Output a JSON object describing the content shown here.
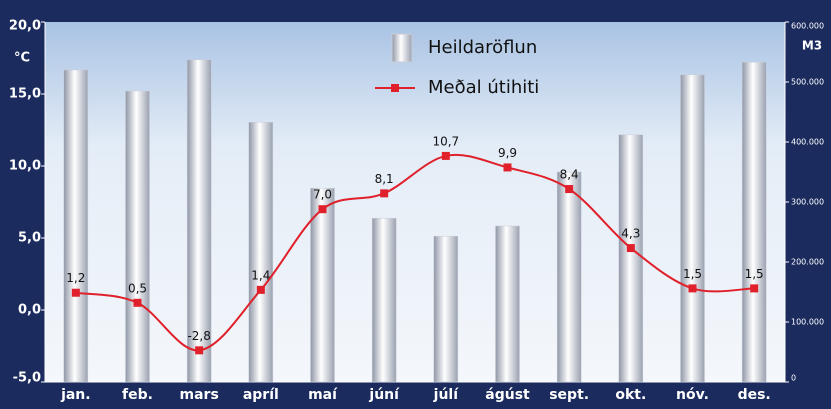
{
  "chart_data": {
    "type": "bar-line",
    "ylabel": "°C",
    "y2label": "M3",
    "categories": [
      "jan.",
      "feb.",
      "mars",
      "apríl",
      "maí",
      "júní",
      "júlí",
      "ágúst",
      "sept.",
      "okt.",
      "nóv.",
      "des."
    ],
    "series": [
      {
        "name": "Heildaröflun",
        "type": "bar",
        "axis": "y2",
        "color": "#c9cdd8",
        "values": [
          520000,
          485000,
          537000,
          433000,
          323000,
          273000,
          243000,
          260000,
          350000,
          412000,
          512000,
          533000
        ]
      },
      {
        "name": "Meðal útihiti",
        "type": "line",
        "axis": "y",
        "color": "#e0202a",
        "values": [
          1.2,
          0.5,
          -2.8,
          1.4,
          7.0,
          8.1,
          10.7,
          9.9,
          8.4,
          4.3,
          1.5,
          1.5
        ],
        "value_labels": [
          "1,2",
          "0,5",
          "-2,8",
          "1,4",
          "7,0",
          "8,1",
          "10,7",
          "9,9",
          "8,4",
          "4,3",
          "1,5",
          "1,5"
        ]
      }
    ],
    "ylim": [
      -5,
      20
    ],
    "yticks": [
      {
        "value": -5,
        "label": "-5,0"
      },
      {
        "value": 0,
        "label": "0,0"
      },
      {
        "value": 5,
        "label": "5,0"
      },
      {
        "value": 10,
        "label": "10,0"
      },
      {
        "value": 15,
        "label": "15,0"
      },
      {
        "value": 20,
        "label": "20,0"
      }
    ],
    "y2lim": [
      0,
      600000
    ],
    "y2ticks": [
      0,
      {
        "value": 100000,
        "label": "100.000"
      },
      {
        "value": 200000,
        "label": "200.000"
      },
      {
        "value": 300000,
        "label": "300.000"
      },
      {
        "value": 400000,
        "label": "400.000"
      },
      {
        "value": 500000,
        "label": "500.000"
      },
      {
        "value": 600000,
        "label": "600.000"
      }
    ],
    "legend": "top"
  }
}
